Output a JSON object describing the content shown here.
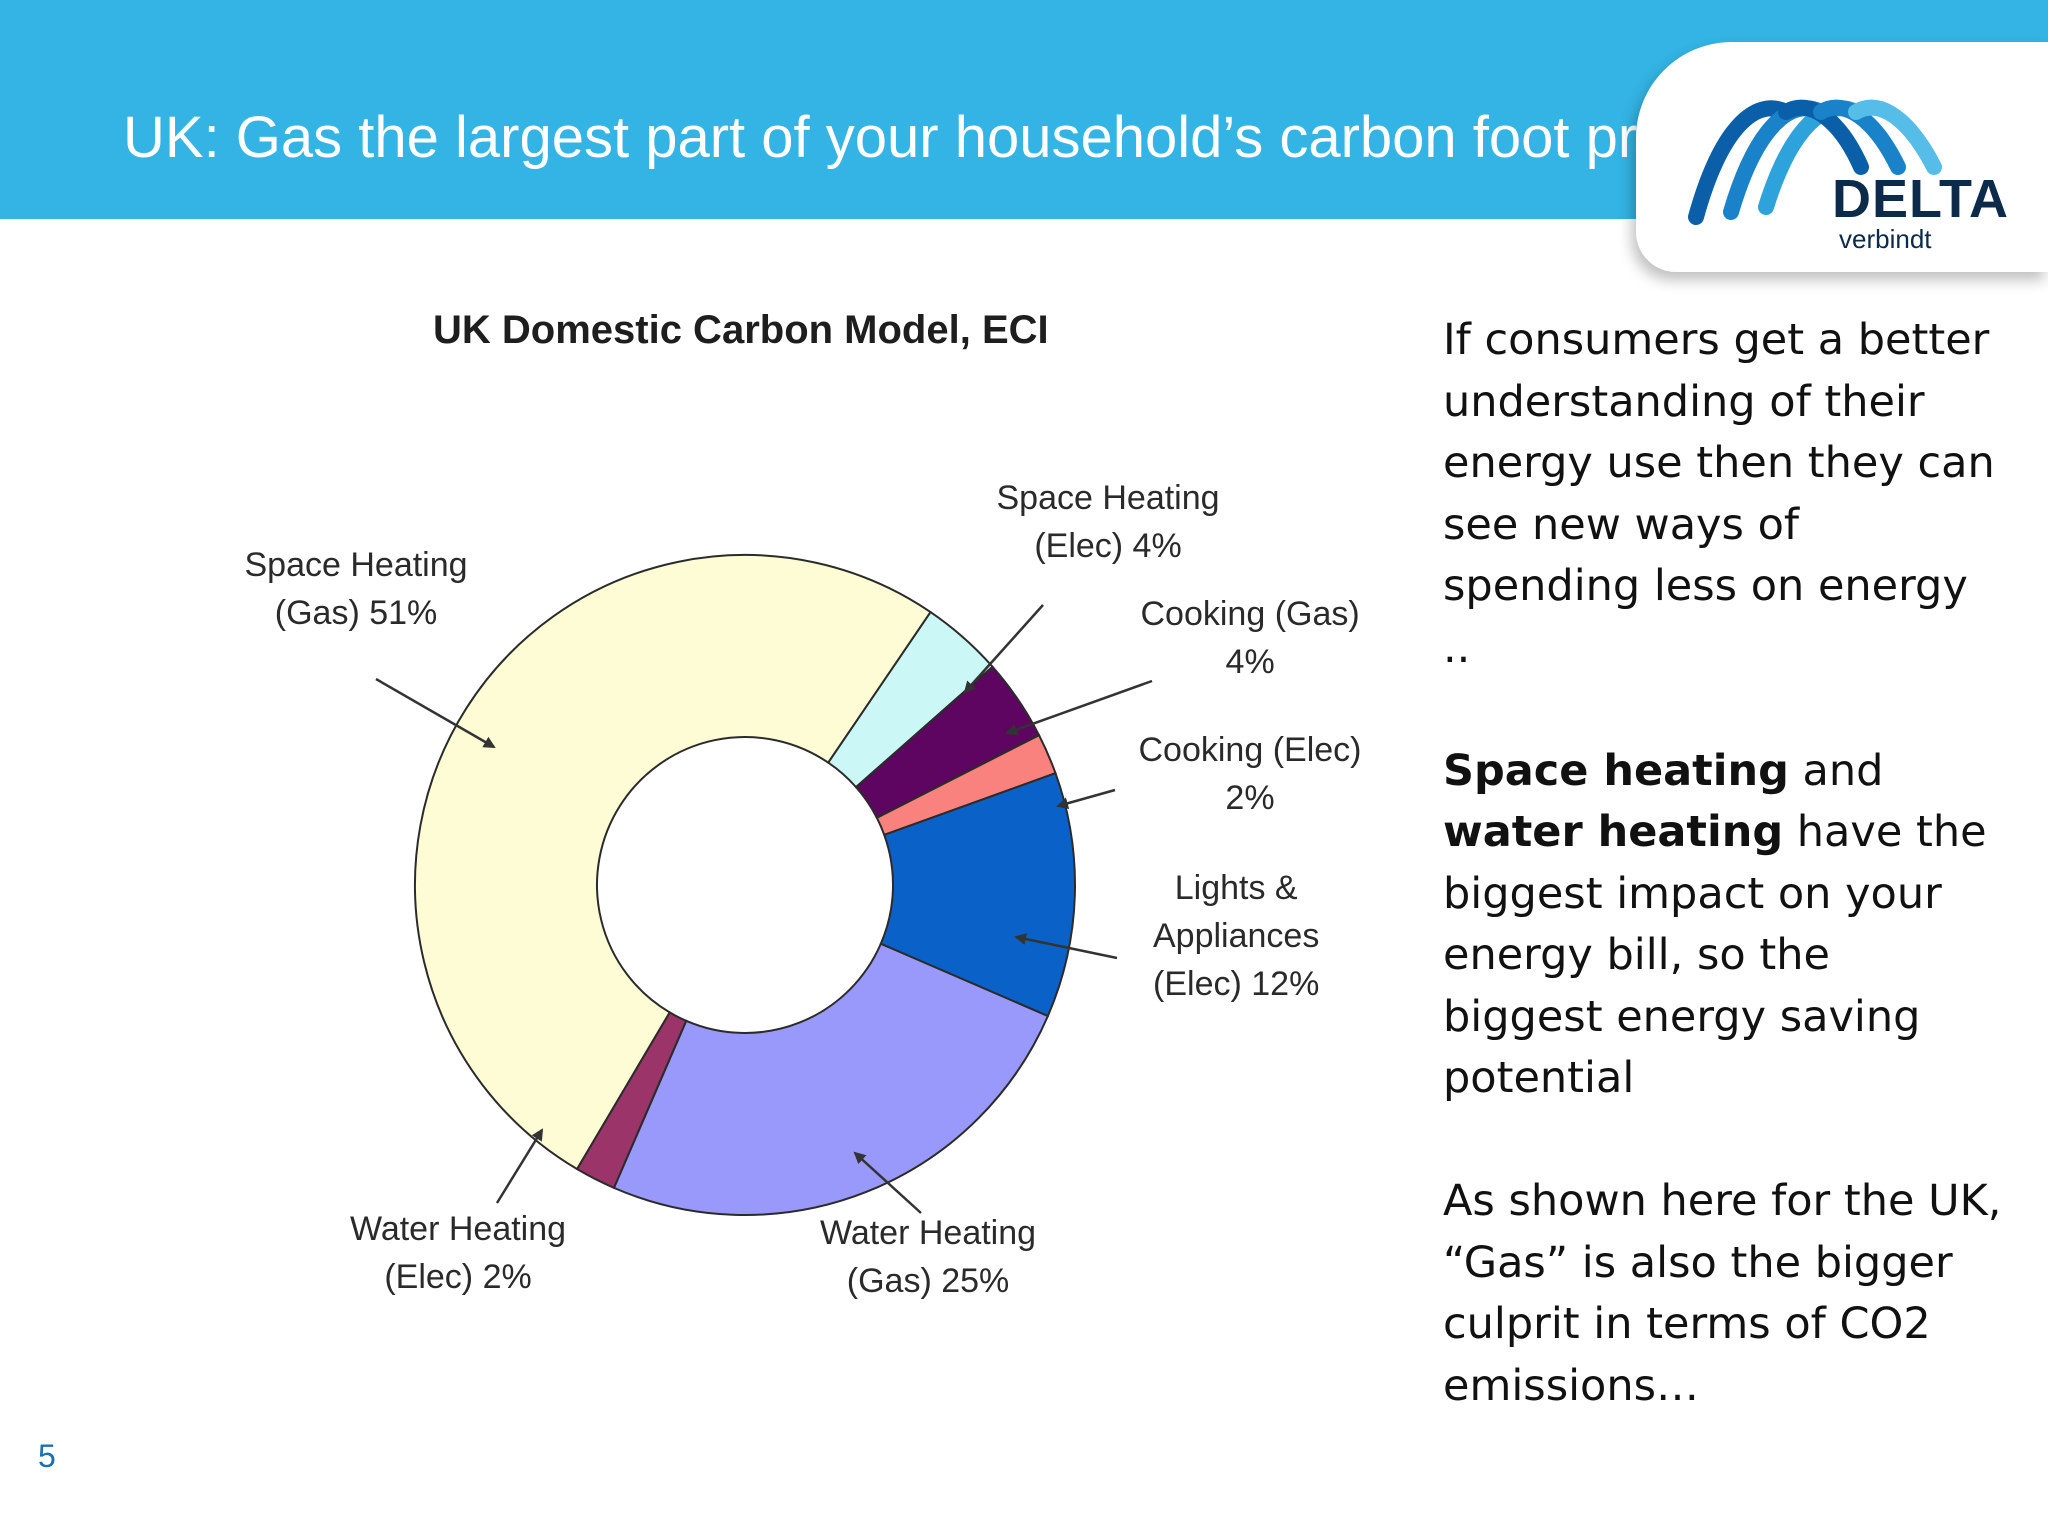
{
  "slide": {
    "title": "UK: Gas the largest part of your household’s carbon foot print",
    "page_number": "5"
  },
  "logo": {
    "wordmark": "DELTA",
    "tagline": "verbindt",
    "colors": [
      "#0a5fa8",
      "#1a82c8",
      "#2ea3db",
      "#55bde8"
    ]
  },
  "chart_data": {
    "type": "pie",
    "variant": "donut",
    "title": "UK Domestic Carbon Model, ECI",
    "slices": [
      {
        "lines": [
          "Space Heating",
          "(Elec) 4%"
        ],
        "value": 4,
        "color": "#ccf7f7"
      },
      {
        "lines": [
          "Cooking (Gas)",
          "4%"
        ],
        "value": 4,
        "color": "#5d0560"
      },
      {
        "lines": [
          "Cooking (Elec)",
          "2%"
        ],
        "value": 2,
        "color": "#f9817e"
      },
      {
        "lines": [
          "Lights &",
          "Appliances",
          "(Elec) 12%"
        ],
        "value": 12,
        "color": "#0a62c8"
      },
      {
        "lines": [
          "Water Heating",
          "(Gas) 25%"
        ],
        "value": 25,
        "color": "#9999fc"
      },
      {
        "lines": [
          "Water Heating",
          "(Elec) 2%"
        ],
        "value": 2,
        "color": "#9b3468"
      },
      {
        "lines": [
          "Space Heating",
          "(Gas) 51%"
        ],
        "value": 51,
        "color": "#fefcd4"
      }
    ]
  },
  "side_text": {
    "para1": "If consumers get a better understanding of their energy use then they can see new ways of spending less on energy ..",
    "para2_bold1": "Space heating",
    "para2_mid": " and ",
    "para2_bold2": "water heating",
    "para2_rest": " have the biggest impact on your energy bill, so the biggest energy saving potential",
    "para3": "As shown here for the UK, “Gas” is also the bigger culprit in terms of CO2 emissions…"
  }
}
